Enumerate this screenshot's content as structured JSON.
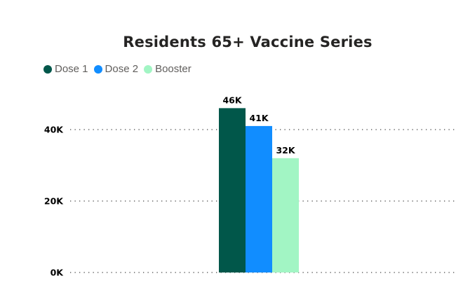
{
  "chart_data": {
    "type": "bar",
    "title": "Residents 65+ Vaccine Series",
    "categories": [
      ""
    ],
    "series": [
      {
        "name": "Dose 1",
        "values": [
          46000
        ],
        "label": "46K",
        "color": "#01574A"
      },
      {
        "name": "Dose 2",
        "values": [
          41000
        ],
        "label": "41K",
        "color": "#118DFF"
      },
      {
        "name": "Booster",
        "values": [
          32000
        ],
        "label": "32K",
        "color": "#A2F5C4"
      }
    ],
    "y_ticks": [
      {
        "value": 0,
        "label": "0K"
      },
      {
        "value": 20000,
        "label": "20K"
      },
      {
        "value": 40000,
        "label": "40K"
      }
    ],
    "ylim": [
      0,
      47500
    ],
    "xlabel": "",
    "ylabel": "",
    "grid": true,
    "legend_position": "top-left"
  }
}
